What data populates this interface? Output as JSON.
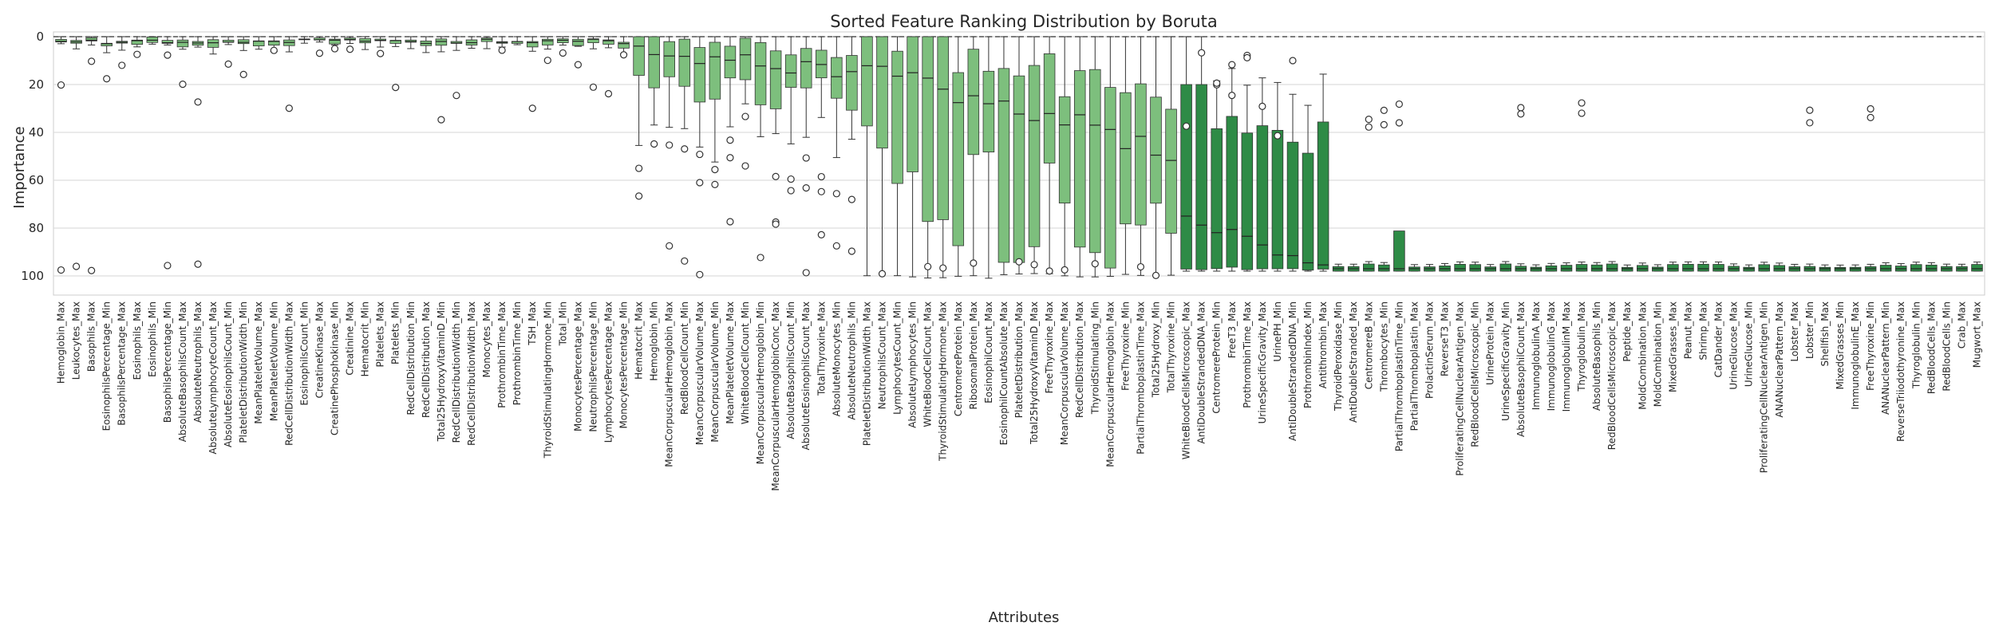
{
  "chart_data": {
    "type": "boxplot",
    "title": "Sorted Feature Ranking Distribution by Boruta",
    "xlabel": "Attributes",
    "ylabel": "Importance",
    "ylim": [
      108,
      -2
    ],
    "y_inverted": true,
    "y_ticks": [
      0,
      20,
      40,
      60,
      80,
      100
    ],
    "grid": "horizontal",
    "reference_line": {
      "value": 0,
      "style": "dashed"
    },
    "box_color_light": "#7dbf7d",
    "box_color_dark": "#2e8b46",
    "categories": [
      "Hemoglobin_Max",
      "Leukocytes_Max",
      "Basophils_Max",
      "EosinophilsPercentage_Min",
      "BasophilsPercentage_Max",
      "Eosinophils_Max",
      "Eosinophils_Min",
      "BasophilsPercentage_Min",
      "AbsoluteBasophilsCount_Max",
      "AbsoluteNeutrophils_Max",
      "AbsoluteLymphocyteCount_Max",
      "AbsoluteEosinophilsCount_Min",
      "PlateletDistributionWidth_Min",
      "MeanPlateletVolume_Max",
      "MeanPlateletVolume_Min",
      "RedCellDistributionWidth_Max",
      "EosinophilsCount_Min",
      "CreatineKinase_Max",
      "CreatinePhosphokinase_Min",
      "Creatinine_Max",
      "Hematocrit_Min",
      "Platelets_Max",
      "Platelets_Min",
      "RedCellDistribution_Min",
      "RedCellDistribution_Max",
      "Total25HydroxyVitaminD_Min",
      "RedCellDistributionWidth_Min",
      "RedCellDistributionWidth_Max",
      "Monocytes_Max",
      "ProthrombinTime_Max",
      "ProthrombinTime_Min",
      "TSH_Max",
      "ThyroidStimulatingHormone_Min",
      "Total_Min",
      "MonocytesPercentage_Max",
      "NeutrophilsPercentage_Min",
      "LymphocytesPercentage_Max",
      "MonocytesPercentage_Min",
      "Hematocrit_Max",
      "Hemoglobin_Min",
      "MeanCorpuscularHemoglobin_Max",
      "RedBloodCellCount_Min",
      "MeanCorpuscularVolume_Max",
      "MeanCorpuscularVolume_Min",
      "MeanPlateletVolume_Max",
      "WhiteBloodCellCount_Min",
      "MeanCorpuscularHemoglobin_Min",
      "MeanCorpuscularHemoglobinConc_Max",
      "AbsoluteBasophilsCount_Min",
      "AbsoluteEosinophilsCount_Max",
      "TotalThyroxine_Max",
      "AbsoluteMonocytes_Min",
      "AbsoluteNeutrophils_Min",
      "PlateletDistributionWidth_Max",
      "NeutrophilsCount_Max",
      "LymphocytesCount_Min",
      "AbsoluteLymphocytes_Min",
      "WhiteBloodCellCount_Max",
      "ThyroidStimulatingHormone_Max",
      "CentromereProtein_Max",
      "RibosomalProtein_Max",
      "EosinophilCount_Max",
      "EosinophilCountAbsolute_Max",
      "PlateletDistribution_Max",
      "Total25HydroxyVitaminD_Max",
      "FreeThyroxine_Max",
      "MeanCorpuscularVolume_Max",
      "RedCellDistribution_Max",
      "ThyroidStimulating_Min",
      "MeanCorpuscularHemoglobin_Max",
      "FreeThyroxine_Min",
      "PartialThromboplastinTime_Max",
      "Total25Hydroxy_Min",
      "TotalThyroxine_Min",
      "WhiteBloodCellsMicroscopic_Max",
      "AntiDoubleStrandedDNA_Max",
      "CentromereProtein_Min",
      "FreeT3_Max",
      "ProthrombinTime_Max",
      "UrineSpecificGravity_Max",
      "UrinePH_Min",
      "AntiDoubleStrandedDNA_Min",
      "ProthrombinIndex_Min",
      "Antithrombin_Max",
      "ThyroidPeroxidase_Min",
      "AntiDoubleStranded_Max",
      "CentromereB_Max",
      "Thrombocytes_Min",
      "PartialThromboplastinTime_Min",
      "PartialThromboplastin_Max",
      "ProlactinSerum_Max",
      "ReverseT3_Max",
      "ProliferatingCellNuclearAntigen_Max",
      "RedBloodCellsMicroscopic_Min",
      "UrineProtein_Max",
      "UrineSpecificGravity_Min",
      "AbsoluteBasophilCount_Max",
      "ImmunoglobulinA_Max",
      "ImmunoglobulinG_Max",
      "ImmunoglobulinM_Max",
      "Thyroglobulin_Max",
      "AbsoluteBasophils_Min",
      "RedBloodCellsMicroscopic_Max",
      "Peptide_Max",
      "MoldCombination_Max",
      "MoldCombination_Min",
      "MixedGrasses_Max",
      "Peanut_Max",
      "Shrimp_Max",
      "CatDander_Max",
      "UrineGlucose_Max",
      "UrineGlucose_Min",
      "ProliferatingCellNuclearAntigen_Min",
      "ANANuclearPattern_Max",
      "Lobster_Max",
      "Lobster_Min",
      "Shellfish_Max",
      "MixedGrasses_Min",
      "ImmunoglobulinE_Max",
      "FreeThyroxine_Min",
      "ANANuclearPattern_Min",
      "ReverseTriiodothyronine_Max",
      "Thyroglobulin_Min",
      "RedBloodCells_Max",
      "RedBloodCells_Min",
      "Crab_Max",
      "Mugwort_Max"
    ],
    "boxes_note": "Approximate box-plot distribution of Boruta ranking per attribute; lower is more important.",
    "boxes": []
  }
}
